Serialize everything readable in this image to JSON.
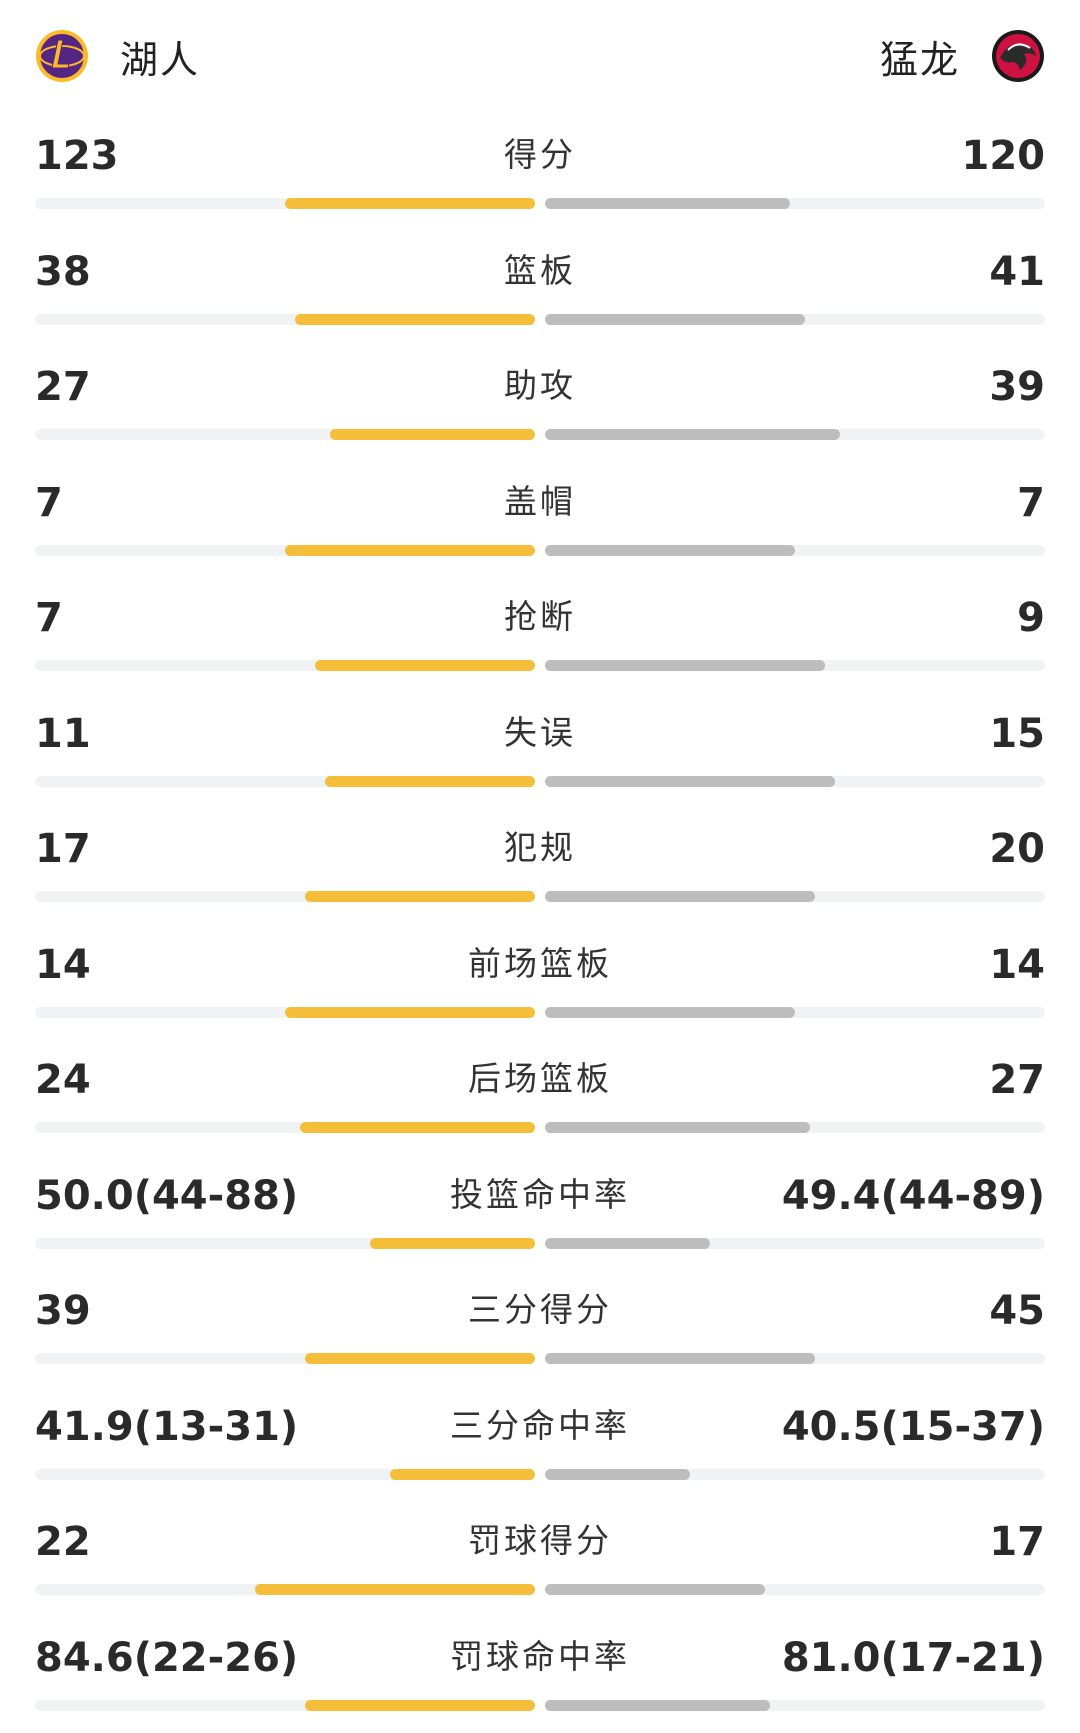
{
  "header": {
    "home_team": "湖人",
    "away_team": "猛龙"
  },
  "colors": {
    "home_bar": "#f5be3a",
    "away_bar": "#bdbdbd",
    "track": "#f1f2f4",
    "lakers_purple": "#552583",
    "lakers_gold": "#fdb927",
    "raptors_red": "#ce1141"
  },
  "stats": [
    {
      "label": "得分",
      "home": "123",
      "away": "120",
      "home_fill": 0.5,
      "away_fill": 0.49
    },
    {
      "label": "篮板",
      "home": "38",
      "away": "41",
      "home_fill": 0.48,
      "away_fill": 0.52
    },
    {
      "label": "助攻",
      "home": "27",
      "away": "39",
      "home_fill": 0.41,
      "away_fill": 0.59
    },
    {
      "label": "盖帽",
      "home": "7",
      "away": "7",
      "home_fill": 0.5,
      "away_fill": 0.5
    },
    {
      "label": "抢断",
      "home": "7",
      "away": "9",
      "home_fill": 0.44,
      "away_fill": 0.56
    },
    {
      "label": "失误",
      "home": "11",
      "away": "15",
      "home_fill": 0.42,
      "away_fill": 0.58
    },
    {
      "label": "犯规",
      "home": "17",
      "away": "20",
      "home_fill": 0.46,
      "away_fill": 0.54
    },
    {
      "label": "前场篮板",
      "home": "14",
      "away": "14",
      "home_fill": 0.5,
      "away_fill": 0.5
    },
    {
      "label": "后场篮板",
      "home": "24",
      "away": "27",
      "home_fill": 0.47,
      "away_fill": 0.53
    },
    {
      "label": "投篮命中率",
      "home": "50.0(44-88)",
      "away": "49.4(44-89)",
      "home_fill": 0.33,
      "away_fill": 0.33
    },
    {
      "label": "三分得分",
      "home": "39",
      "away": "45",
      "home_fill": 0.46,
      "away_fill": 0.54
    },
    {
      "label": "三分命中率",
      "home": "41.9(13-31)",
      "away": "40.5(15-37)",
      "home_fill": 0.29,
      "away_fill": 0.29
    },
    {
      "label": "罚球得分",
      "home": "22",
      "away": "17",
      "home_fill": 0.56,
      "away_fill": 0.44
    },
    {
      "label": "罚球命中率",
      "home": "84.6(22-26)",
      "away": "81.0(17-21)",
      "home_fill": 0.46,
      "away_fill": 0.45
    }
  ]
}
